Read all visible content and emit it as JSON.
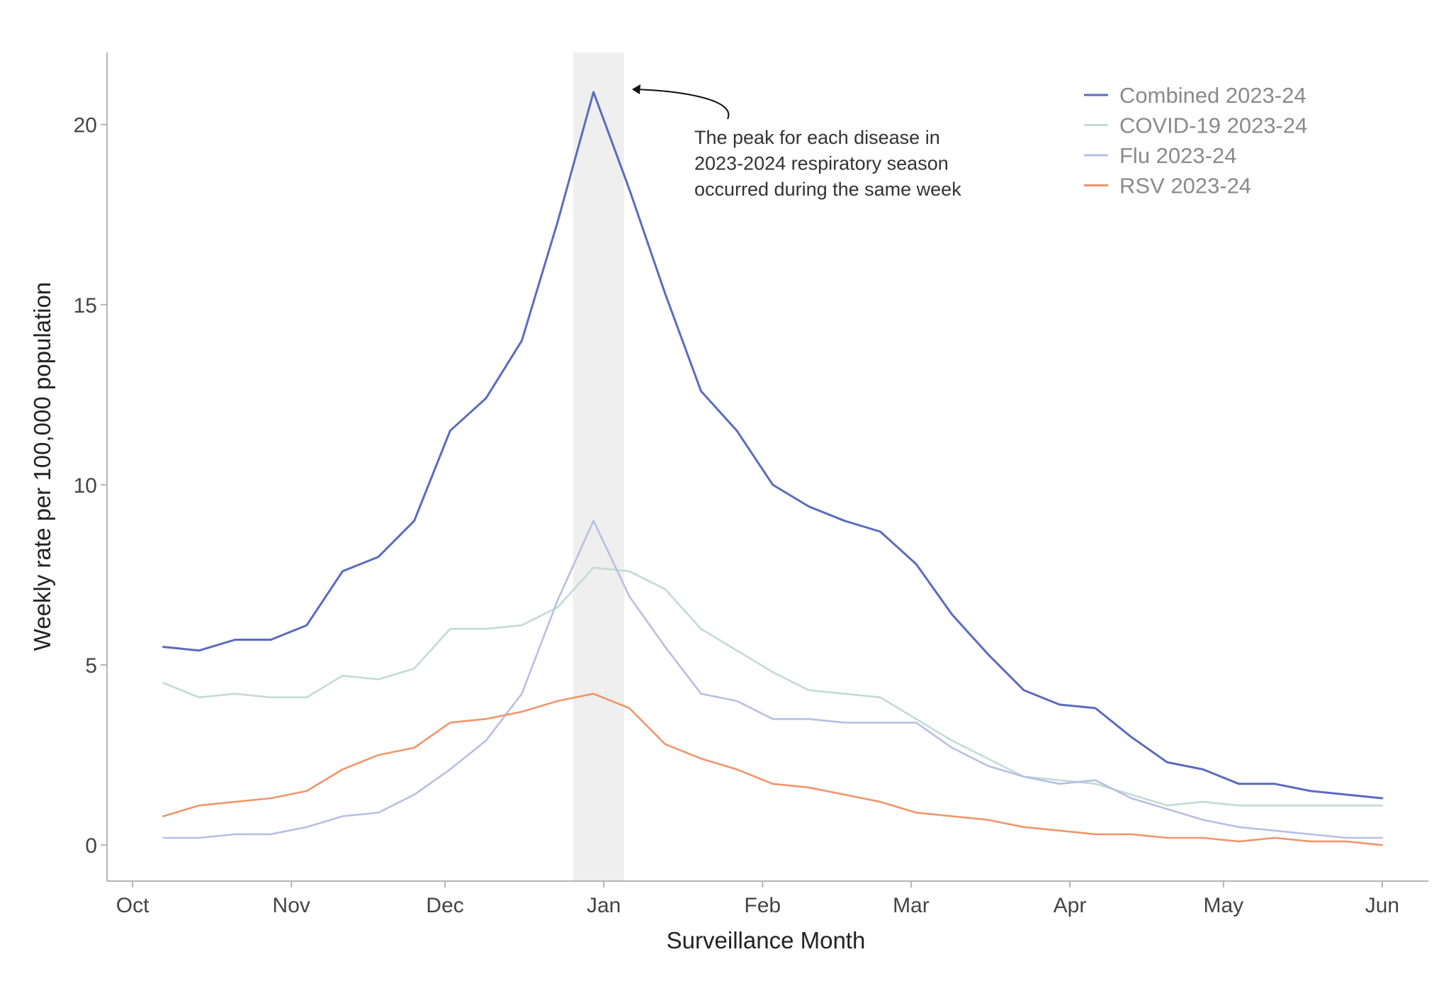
{
  "chart_data": {
    "type": "line",
    "xlabel": "Surveillance Month",
    "ylabel": "Weekly rate per 100,000 population",
    "ylim": [
      -1,
      22
    ],
    "xlim": [
      "2023-09-26",
      "2024-06-10"
    ],
    "x_ticks": [
      {
        "label": "Oct",
        "date": "2023-10-01"
      },
      {
        "label": "Nov",
        "date": "2023-11-01"
      },
      {
        "label": "Dec",
        "date": "2023-12-01"
      },
      {
        "label": "Jan",
        "date": "2024-01-01"
      },
      {
        "label": "Feb",
        "date": "2024-02-01"
      },
      {
        "label": "Mar",
        "date": "2024-03-01"
      },
      {
        "label": "Apr",
        "date": "2024-04-01"
      },
      {
        "label": "May",
        "date": "2024-05-01"
      },
      {
        "label": "Jun",
        "date": "2024-06-01"
      }
    ],
    "y_ticks": [
      0,
      5,
      10,
      15,
      20
    ],
    "grid": false,
    "legend_position": "top-right",
    "x": [
      "2023-10-07",
      "2023-10-14",
      "2023-10-21",
      "2023-10-28",
      "2023-11-04",
      "2023-11-11",
      "2023-11-18",
      "2023-11-25",
      "2023-12-02",
      "2023-12-09",
      "2023-12-16",
      "2023-12-23",
      "2023-12-30",
      "2024-01-06",
      "2024-01-13",
      "2024-01-20",
      "2024-01-27",
      "2024-02-03",
      "2024-02-10",
      "2024-02-17",
      "2024-02-24",
      "2024-03-02",
      "2024-03-09",
      "2024-03-16",
      "2024-03-23",
      "2024-03-30",
      "2024-04-06",
      "2024-04-13",
      "2024-04-20",
      "2024-04-27",
      "2024-05-04",
      "2024-05-11",
      "2024-05-18",
      "2024-05-25",
      "2024-06-01"
    ],
    "series": [
      {
        "name": "Combined 2023-24",
        "color": "#5b6bbf",
        "values": [
          5.5,
          5.4,
          5.7,
          5.7,
          6.1,
          7.6,
          8.0,
          9.0,
          11.5,
          12.4,
          14.0,
          17.3,
          20.9,
          18.2,
          15.3,
          12.6,
          11.5,
          10.0,
          9.4,
          9.0,
          8.7,
          7.8,
          6.4,
          5.3,
          4.3,
          3.9,
          3.8,
          3.0,
          2.3,
          2.1,
          1.7,
          1.7,
          1.5,
          1.4,
          1.3
        ]
      },
      {
        "name": "COVID-19 2023-24",
        "color": "#c3dbd4",
        "values": [
          4.5,
          4.1,
          4.2,
          4.1,
          4.1,
          4.7,
          4.6,
          4.9,
          6.0,
          6.0,
          6.1,
          6.6,
          7.7,
          7.6,
          7.1,
          6.0,
          5.4,
          4.8,
          4.3,
          4.2,
          4.1,
          3.5,
          2.9,
          2.4,
          1.9,
          1.8,
          1.7,
          1.4,
          1.1,
          1.2,
          1.1,
          1.1,
          1.1,
          1.1,
          1.1
        ]
      },
      {
        "name": "Flu 2023-24",
        "color": "#b8bfe4",
        "values": [
          0.2,
          0.2,
          0.3,
          0.3,
          0.5,
          0.8,
          0.9,
          1.4,
          2.1,
          2.9,
          4.2,
          6.8,
          9.0,
          6.9,
          5.5,
          4.2,
          4.0,
          3.5,
          3.5,
          3.4,
          3.4,
          3.4,
          2.7,
          2.2,
          1.9,
          1.7,
          1.8,
          1.3,
          1.0,
          0.7,
          0.5,
          0.4,
          0.3,
          0.2,
          0.2
        ]
      },
      {
        "name": "RSV 2023-24",
        "color": "#f0956a",
        "values": [
          0.8,
          1.1,
          1.2,
          1.3,
          1.5,
          2.1,
          2.5,
          2.7,
          3.4,
          3.5,
          3.7,
          4.0,
          4.2,
          3.8,
          2.8,
          2.4,
          2.1,
          1.7,
          1.6,
          1.4,
          1.2,
          0.9,
          0.8,
          0.7,
          0.5,
          0.4,
          0.3,
          0.3,
          0.2,
          0.2,
          0.1,
          0.2,
          0.1,
          0.1,
          0.0
        ]
      }
    ],
    "highlight_band": {
      "start": "2023-12-26",
      "end": "2024-01-05",
      "color": "#efefef"
    },
    "annotation": {
      "lines": [
        "The peak for each disease in",
        "2023-2024 respiratory season",
        "occurred during the same week"
      ]
    }
  }
}
